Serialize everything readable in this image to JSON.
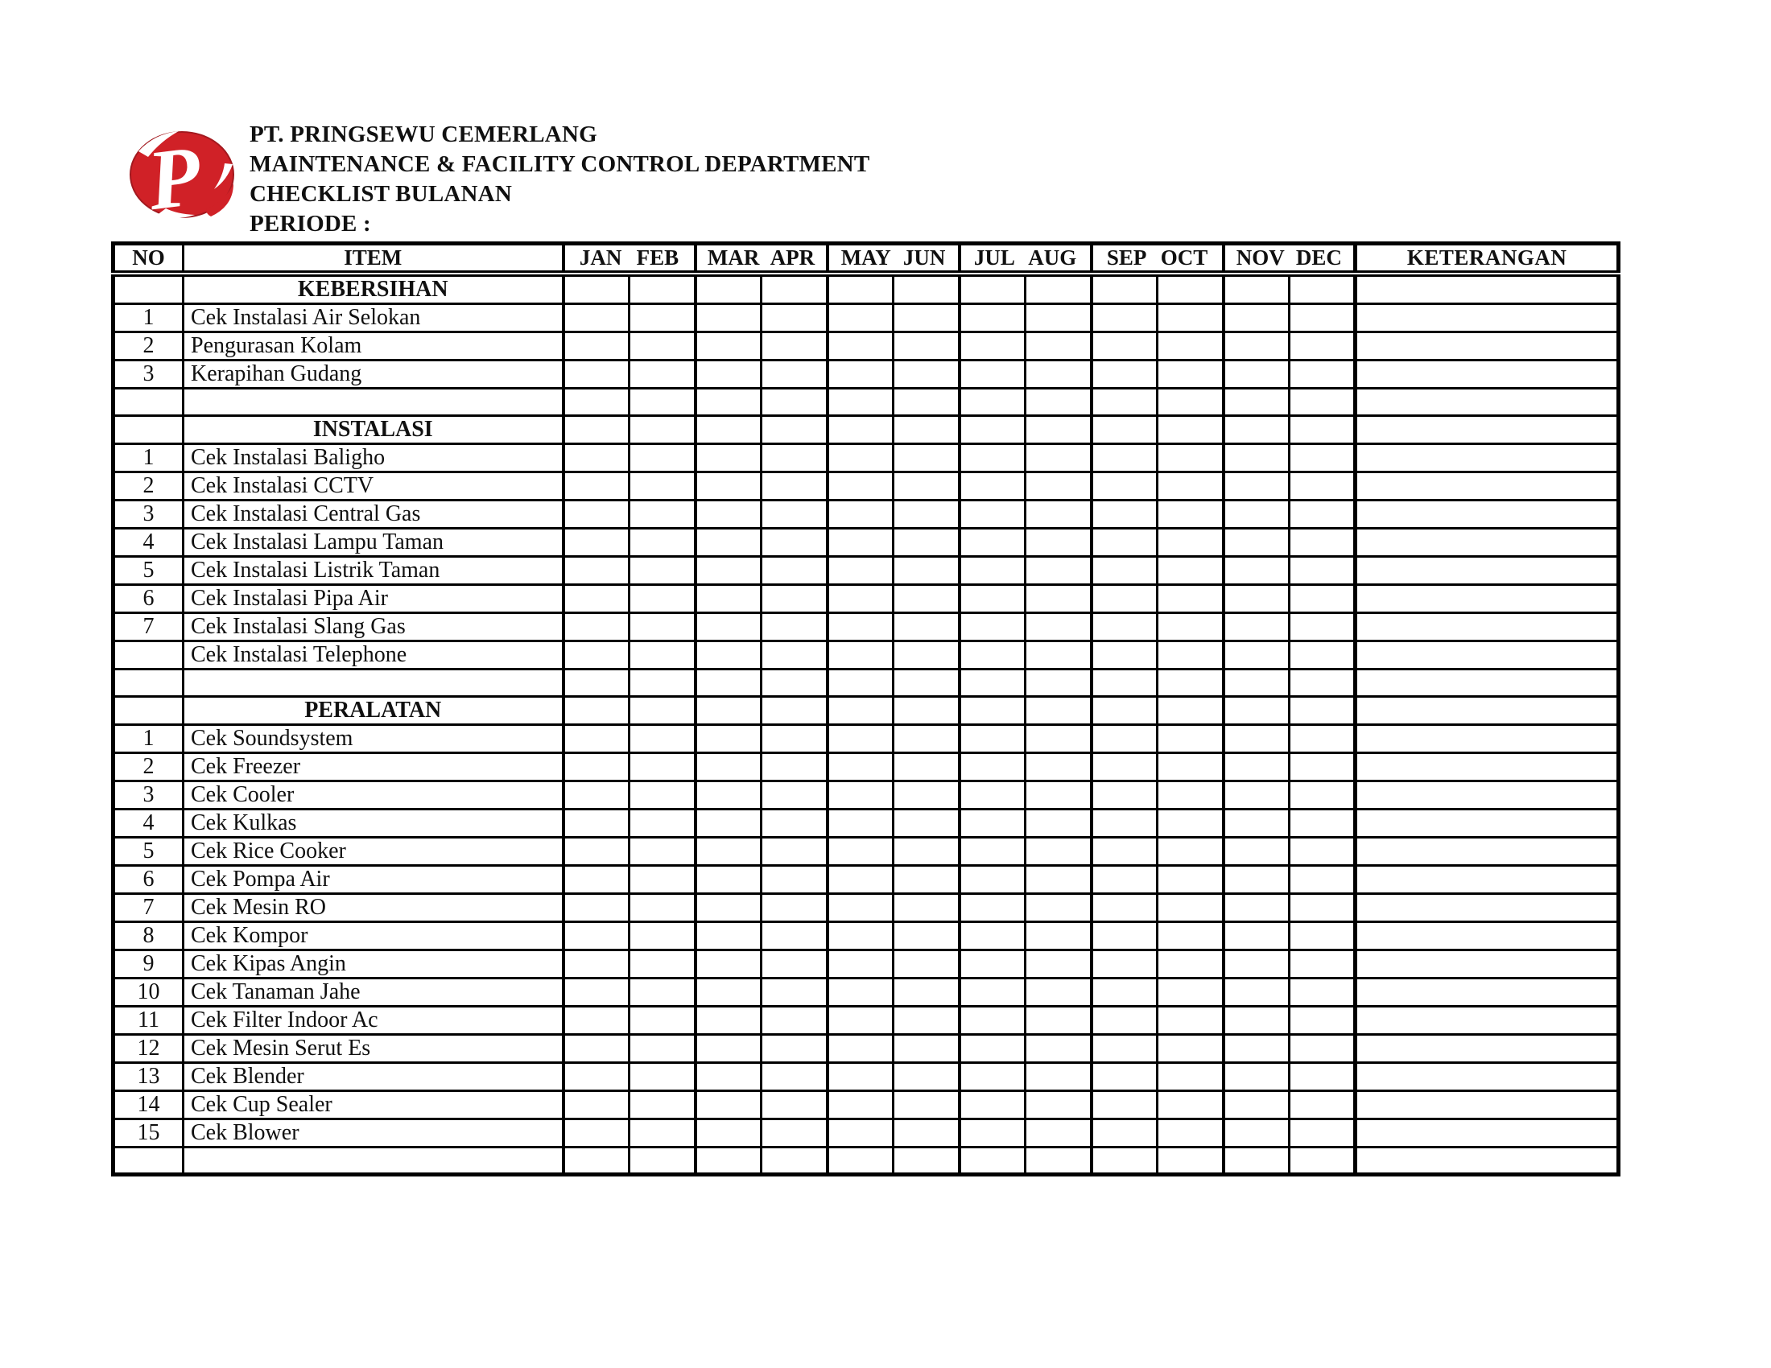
{
  "colors": {
    "logo_red": "#d02127",
    "logo_red_dark": "#a3191f",
    "ink": "#101010",
    "paper": "#ffffff"
  },
  "logo": {
    "letter": "P"
  },
  "header": {
    "company": "PT. PRINGSEWU CEMERLANG",
    "department": "MAINTENANCE & FACILITY CONTROL DEPARTMENT",
    "title": "CHECKLIST BULANAN",
    "periode_label": "PERIODE :"
  },
  "table": {
    "columns": {
      "no": "NO",
      "item": "ITEM",
      "keterangan": "KETERANGAN"
    },
    "months": [
      "JAN",
      "FEB",
      "MAR",
      "APR",
      "MAY",
      "JUN",
      "JUL",
      "AUG",
      "SEP",
      "OCT",
      "NOV",
      "DEC"
    ],
    "rows": [
      {
        "type": "section",
        "no": "",
        "item": "KEBERSIHAN"
      },
      {
        "type": "item",
        "no": "1",
        "item": "Cek Instalasi Air Selokan"
      },
      {
        "type": "item",
        "no": "2",
        "item": "Pengurasan Kolam"
      },
      {
        "type": "item",
        "no": "3",
        "item": "Kerapihan Gudang"
      },
      {
        "type": "empty",
        "no": "",
        "item": ""
      },
      {
        "type": "section",
        "no": "",
        "item": "INSTALASI"
      },
      {
        "type": "item",
        "no": "1",
        "item": "Cek Instalasi Baligho"
      },
      {
        "type": "item",
        "no": "2",
        "item": "Cek Instalasi CCTV"
      },
      {
        "type": "item",
        "no": "3",
        "item": "Cek Instalasi Central Gas"
      },
      {
        "type": "item",
        "no": "4",
        "item": "Cek Instalasi Lampu Taman"
      },
      {
        "type": "item",
        "no": "5",
        "item": "Cek Instalasi Listrik Taman"
      },
      {
        "type": "item",
        "no": "6",
        "item": "Cek Instalasi Pipa Air"
      },
      {
        "type": "item",
        "no": "7",
        "item": "Cek Instalasi Slang Gas"
      },
      {
        "type": "item",
        "no": "",
        "item": "Cek Instalasi Telephone"
      },
      {
        "type": "empty",
        "no": "",
        "item": ""
      },
      {
        "type": "section",
        "no": "",
        "item": "PERALATAN"
      },
      {
        "type": "item",
        "no": "1",
        "item": "Cek Soundsystem"
      },
      {
        "type": "item",
        "no": "2",
        "item": "Cek Freezer"
      },
      {
        "type": "item",
        "no": "3",
        "item": "Cek Cooler"
      },
      {
        "type": "item",
        "no": "4",
        "item": "Cek Kulkas"
      },
      {
        "type": "item",
        "no": "5",
        "item": "Cek Rice Cooker"
      },
      {
        "type": "item",
        "no": "6",
        "item": "Cek Pompa Air"
      },
      {
        "type": "item",
        "no": "7",
        "item": "Cek Mesin RO"
      },
      {
        "type": "item",
        "no": "8",
        "item": "Cek Kompor"
      },
      {
        "type": "item",
        "no": "9",
        "item": "Cek Kipas Angin"
      },
      {
        "type": "item",
        "no": "10",
        "item": "Cek Tanaman Jahe"
      },
      {
        "type": "item",
        "no": "11",
        "item": "Cek Filter Indoor Ac"
      },
      {
        "type": "item",
        "no": "12",
        "item": "Cek Mesin Serut Es"
      },
      {
        "type": "item",
        "no": "13",
        "item": "Cek Blender"
      },
      {
        "type": "item",
        "no": "14",
        "item": "Cek Cup Sealer"
      },
      {
        "type": "item",
        "no": "15",
        "item": "Cek Blower"
      },
      {
        "type": "empty",
        "no": "",
        "item": ""
      }
    ]
  }
}
